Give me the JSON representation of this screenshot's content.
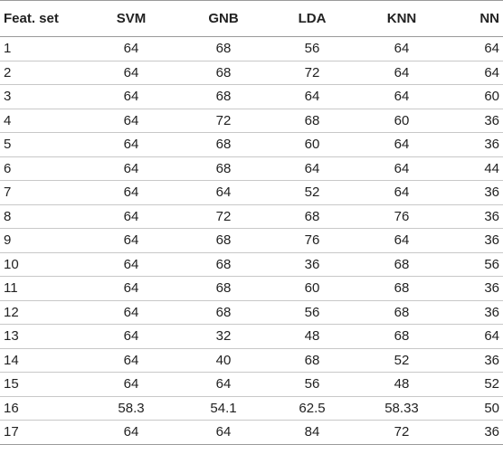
{
  "table": {
    "headers": [
      "Feat. set",
      "SVM",
      "GNB",
      "LDA",
      "KNN",
      "NN"
    ],
    "rows": [
      [
        "1",
        "64",
        "68",
        "56",
        "64",
        "64"
      ],
      [
        "2",
        "64",
        "68",
        "72",
        "64",
        "64"
      ],
      [
        "3",
        "64",
        "68",
        "64",
        "64",
        "60"
      ],
      [
        "4",
        "64",
        "72",
        "68",
        "60",
        "36"
      ],
      [
        "5",
        "64",
        "68",
        "60",
        "64",
        "36"
      ],
      [
        "6",
        "64",
        "68",
        "64",
        "64",
        "44"
      ],
      [
        "7",
        "64",
        "64",
        "52",
        "64",
        "36"
      ],
      [
        "8",
        "64",
        "72",
        "68",
        "76",
        "36"
      ],
      [
        "9",
        "64",
        "68",
        "76",
        "64",
        "36"
      ],
      [
        "10",
        "64",
        "68",
        "36",
        "68",
        "56"
      ],
      [
        "11",
        "64",
        "68",
        "60",
        "68",
        "36"
      ],
      [
        "12",
        "64",
        "68",
        "56",
        "68",
        "36"
      ],
      [
        "13",
        "64",
        "32",
        "48",
        "68",
        "64"
      ],
      [
        "14",
        "64",
        "40",
        "68",
        "52",
        "36"
      ],
      [
        "15",
        "64",
        "64",
        "56",
        "48",
        "52"
      ],
      [
        "16",
        "58.3",
        "54.1",
        "62.5",
        "58.33",
        "50"
      ],
      [
        "17",
        "64",
        "64",
        "84",
        "72",
        "36"
      ]
    ]
  }
}
